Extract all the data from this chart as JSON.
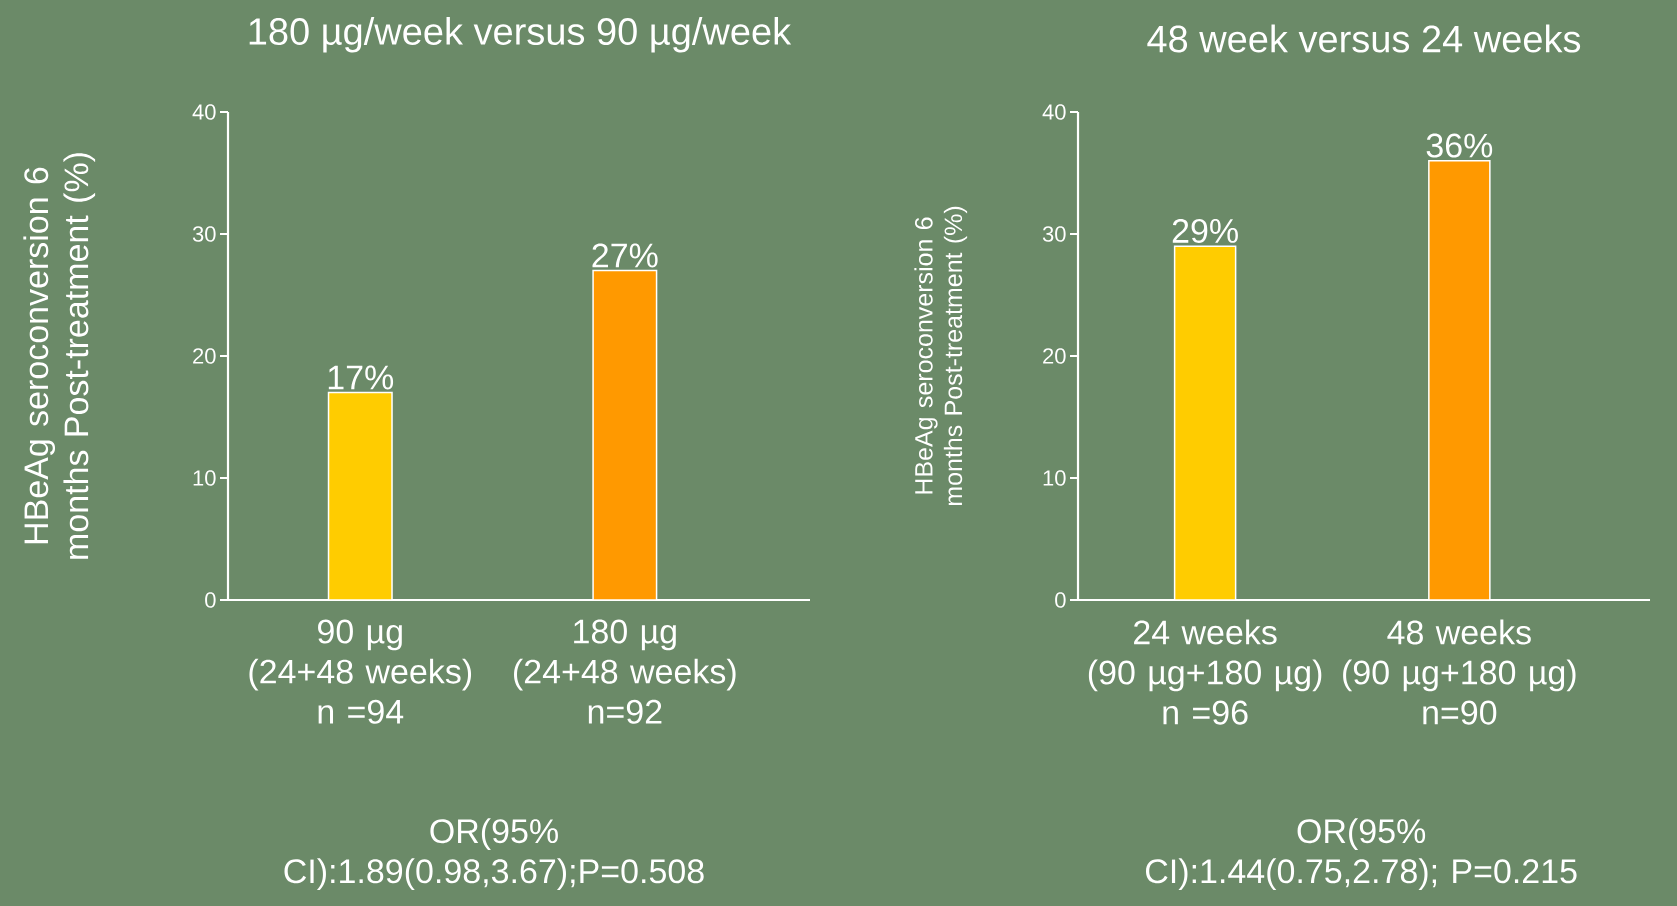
{
  "chart_data": [
    {
      "type": "bar",
      "title": "180 µg/week versus 90 µg/week",
      "ylabel": "HBeAg seroconversion 6 months Post-treatment (%)",
      "categories": [
        "90 µg\n(24+48 weeks)\nn =94",
        "180 µg\n(24+48 weeks)\nn=92"
      ],
      "values": [
        17,
        27
      ],
      "colors": [
        "#ffcc00",
        "#ff9900"
      ],
      "value_labels": [
        "17%",
        "27%"
      ],
      "ylim": [
        0,
        40
      ],
      "yticks": [
        0,
        10,
        20,
        30,
        40
      ],
      "annotations": [
        "OR(95% CI):1.89(0.98,3.67);P=0.508"
      ]
    },
    {
      "type": "bar",
      "title": "48 week versus 24 weeks",
      "ylabel": "HBeAg seroconversion 6 months Post-treatment (%)",
      "categories": [
        "24 weeks\n(90 µg+180 µg)\nn =96",
        "48 weeks\n(90 µg+180 µg)\nn=90"
      ],
      "values": [
        29,
        36
      ],
      "colors": [
        "#ffcc00",
        "#ff9900"
      ],
      "value_labels": [
        "29%",
        "36%"
      ],
      "ylim": [
        0,
        40
      ],
      "yticks": [
        0,
        10,
        20,
        30,
        40
      ],
      "annotations": [
        "OR(95% CI):1.44(0.75,2.78); P=0.215"
      ]
    }
  ]
}
